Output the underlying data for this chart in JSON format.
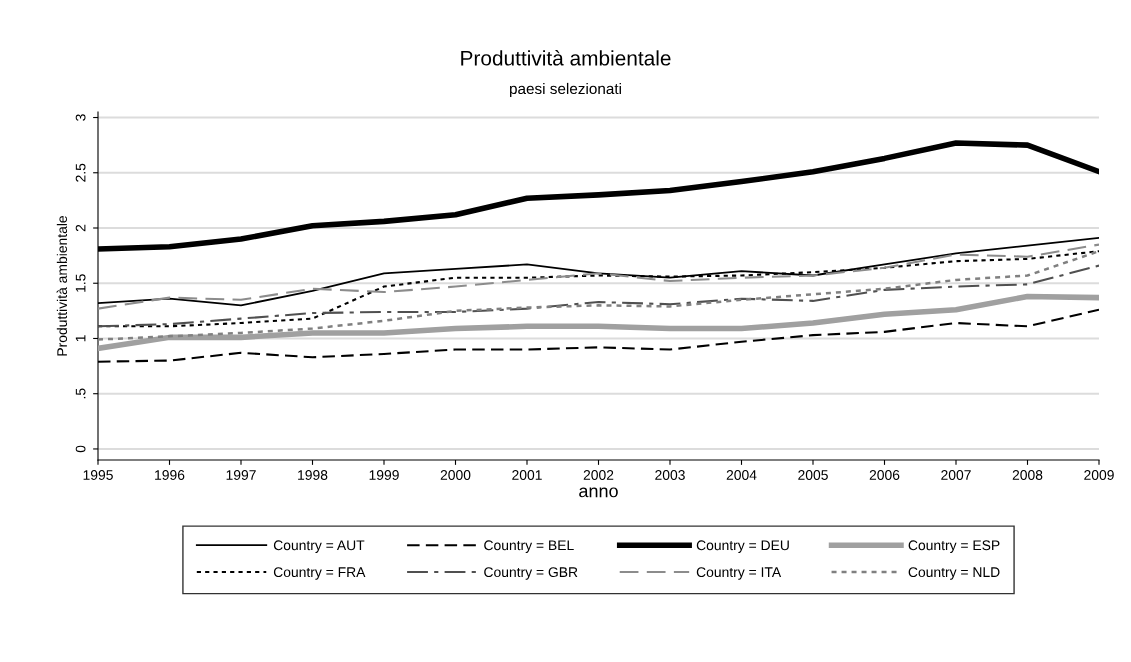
{
  "chart_data": {
    "type": "line",
    "title": "Produttività ambientale",
    "subtitle": "paesi selezionati",
    "xlabel": "anno",
    "ylabel": "Produttività ambientale",
    "x": [
      1995,
      1996,
      1997,
      1998,
      1999,
      2000,
      2001,
      2002,
      2003,
      2004,
      2005,
      2006,
      2007,
      2008,
      2009
    ],
    "xlim": [
      1995,
      2009
    ],
    "xticks": [
      1995,
      1996,
      1997,
      1998,
      1999,
      2000,
      2001,
      2002,
      2003,
      2004,
      2005,
      2006,
      2007,
      2008,
      2009
    ],
    "ylim": [
      -0.1,
      3.05
    ],
    "yticks": [
      0,
      {
        "value": 0.5,
        "label": ".5"
      },
      1,
      1.5,
      2,
      2.5,
      3
    ],
    "grid": "y",
    "legend": "bottom",
    "marker": "none",
    "series": [
      {
        "name": "Country = AUT",
        "color": "#000000",
        "line_style": "solid",
        "values": [
          1.32,
          1.36,
          1.3,
          1.43,
          1.59,
          1.63,
          1.67,
          1.59,
          1.55,
          1.61,
          1.57,
          1.67,
          1.77,
          1.84,
          1.91
        ]
      },
      {
        "name": "Country = BEL",
        "color": "#000000",
        "line_style": "dashed",
        "values": [
          0.79,
          0.8,
          0.87,
          0.83,
          0.86,
          0.9,
          0.9,
          0.92,
          0.9,
          0.97,
          1.03,
          1.06,
          1.14,
          1.11,
          1.26
        ]
      },
      {
        "name": "Country = DEU",
        "color": "#000000",
        "line_style": "solid",
        "values": [
          1.81,
          1.83,
          1.9,
          2.02,
          2.06,
          2.12,
          2.27,
          2.3,
          2.34,
          2.42,
          2.51,
          2.63,
          2.77,
          2.75,
          2.51
        ]
      },
      {
        "name": "Country = ESP",
        "color": "#a0a0a0",
        "line_style": "solid",
        "values": [
          0.91,
          1.01,
          1.01,
          1.05,
          1.05,
          1.09,
          1.11,
          1.11,
          1.09,
          1.09,
          1.14,
          1.22,
          1.26,
          1.38,
          1.37
        ]
      },
      {
        "name": "Country = FRA",
        "color": "#000000",
        "line_style": "dotted",
        "values": [
          1.11,
          1.11,
          1.14,
          1.18,
          1.47,
          1.55,
          1.55,
          1.57,
          1.56,
          1.57,
          1.6,
          1.64,
          1.7,
          1.72,
          1.79
        ]
      },
      {
        "name": "Country = GBR",
        "color": "#505050",
        "line_style": "dashdot",
        "values": [
          1.11,
          1.13,
          1.18,
          1.23,
          1.24,
          1.24,
          1.27,
          1.33,
          1.31,
          1.36,
          1.34,
          1.44,
          1.47,
          1.49,
          1.66
        ]
      },
      {
        "name": "Country = ITA",
        "color": "#8c8c8c",
        "line_style": "dashed",
        "values": [
          1.27,
          1.37,
          1.35,
          1.45,
          1.42,
          1.47,
          1.53,
          1.59,
          1.52,
          1.55,
          1.57,
          1.64,
          1.76,
          1.74,
          1.85
        ]
      },
      {
        "name": "Country = NLD",
        "color": "#808080",
        "line_style": "dotted",
        "values": [
          0.99,
          1.02,
          1.05,
          1.09,
          1.16,
          1.25,
          1.28,
          1.3,
          1.29,
          1.35,
          1.4,
          1.45,
          1.53,
          1.57,
          1.79
        ]
      }
    ]
  }
}
